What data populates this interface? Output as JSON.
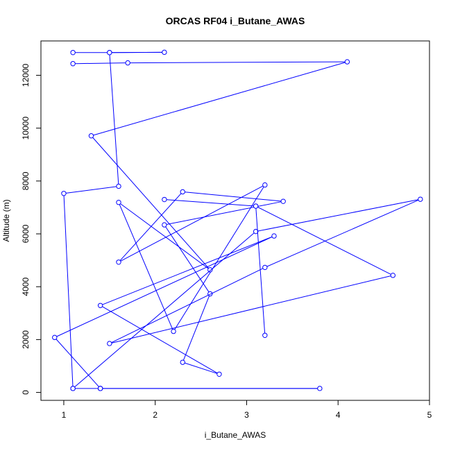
{
  "chart_data": {
    "type": "line",
    "title": "ORCAS RF04 i_Butane_AWAS",
    "xlabel": "i_Butane_AWAS",
    "ylabel": "Altitude (m)",
    "xlim": [
      0.75,
      5.0
    ],
    "ylim": [
      -300,
      13300
    ],
    "xticks": [
      1,
      2,
      3,
      4,
      5
    ],
    "yticks": [
      0,
      2000,
      4000,
      6000,
      8000,
      10000,
      12000
    ],
    "grid": false,
    "legend": "none",
    "color": "#0000ff",
    "markers": "open-circle",
    "series": [
      {
        "x": [
          1.1,
          1.5,
          2.1,
          1.5,
          1.6,
          1.0,
          1.1,
          1.4,
          3.8,
          1.4,
          1.4,
          0.9,
          3.3,
          1.4,
          2.7,
          2.3,
          2.6,
          2.1,
          3.4,
          2.3,
          1.6,
          3.2,
          2.2,
          1.6,
          2.6,
          1.3,
          4.1,
          1.7,
          1.1
        ],
        "y": [
          12860,
          12860,
          12870,
          12860,
          7800,
          7530,
          150,
          150,
          150,
          150,
          150,
          2080,
          5920,
          3290,
          690,
          1140,
          3730,
          6340,
          7230,
          7590,
          4930,
          7850,
          2310,
          7190,
          4640,
          9710,
          12510,
          12470,
          12440
        ]
      },
      {
        "x": [
          1.1,
          3.1,
          4.9,
          3.2,
          1.5,
          4.6,
          3.1
        ],
        "y": [
          150,
          6090,
          7310,
          4730,
          1850,
          4430,
          7050
        ]
      },
      {
        "x": [
          3.2,
          3.1,
          2.1
        ],
        "y": [
          2160,
          7050,
          7300
        ]
      }
    ]
  }
}
